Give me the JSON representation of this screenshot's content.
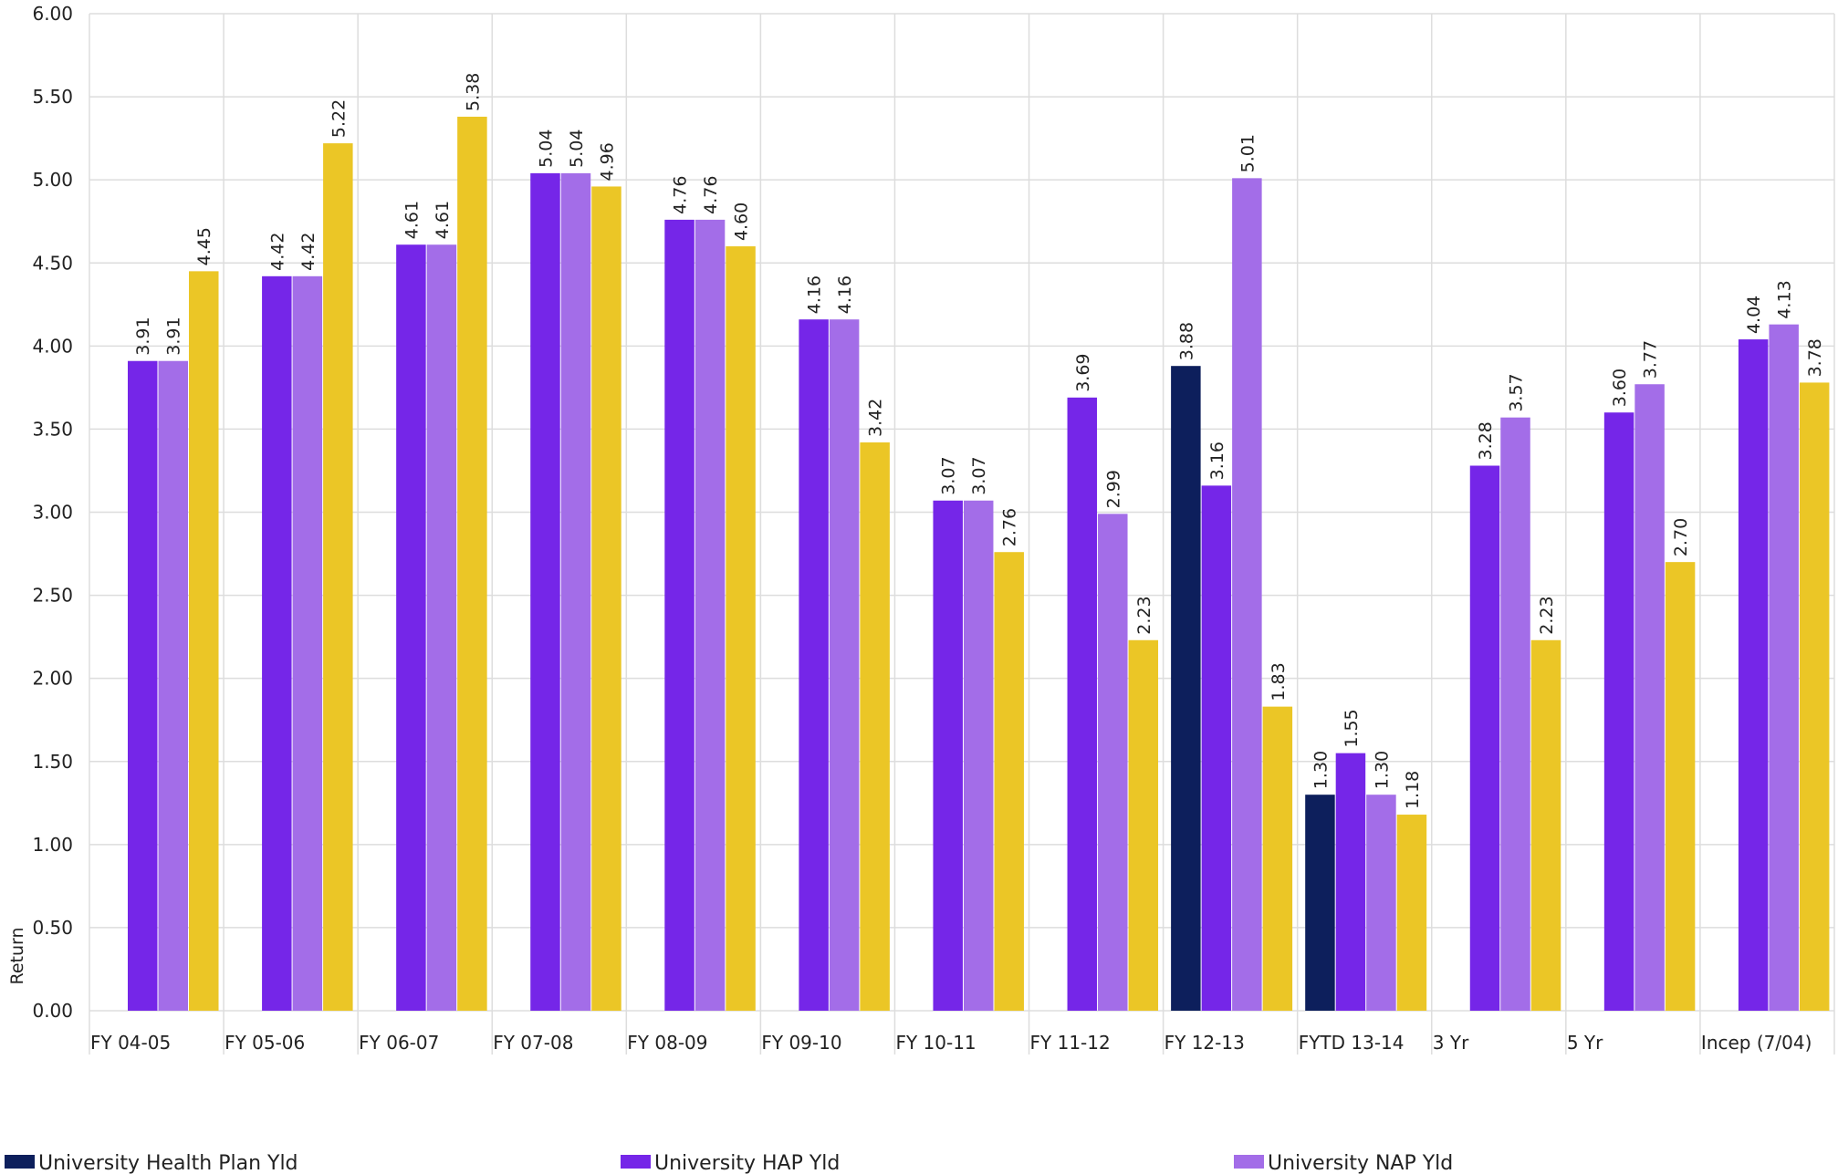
{
  "chart_data": {
    "type": "bar",
    "ylabel": "Return",
    "ylim": [
      0,
      6
    ],
    "yticks": [
      "0.00",
      "0.50",
      "1.00",
      "1.50",
      "2.00",
      "2.50",
      "3.00",
      "3.50",
      "4.00",
      "4.50",
      "5.00",
      "5.50",
      "6.00"
    ],
    "grid": true,
    "legend_position": "bottom",
    "categories": [
      "FY 04-05",
      "FY 05-06",
      "FY 06-07",
      "FY 07-08",
      "FY 08-09",
      "FY 09-10",
      "FY 10-11",
      "FY 11-12",
      "FY 12-13",
      "FYTD 13-14",
      "3 Yr",
      "5 Yr",
      "Incep (7/04)"
    ],
    "series": [
      {
        "name": "University Health Plan Yld",
        "color": "#0d1f5c",
        "values": [
          null,
          null,
          null,
          null,
          null,
          null,
          null,
          null,
          3.88,
          1.3,
          null,
          null,
          null
        ]
      },
      {
        "name": "University HAP Yld",
        "color": "#7526e8",
        "values": [
          3.91,
          4.42,
          4.61,
          5.04,
          4.76,
          4.16,
          3.07,
          3.69,
          3.16,
          1.55,
          3.28,
          3.6,
          4.04
        ]
      },
      {
        "name": "University NAP Yld",
        "color": "#a36de8",
        "values": [
          3.91,
          4.42,
          4.61,
          5.04,
          4.76,
          4.16,
          3.07,
          2.99,
          5.01,
          1.3,
          3.57,
          3.77,
          4.13
        ]
      },
      {
        "name": "",
        "color": "#ebc626",
        "values": [
          4.45,
          5.22,
          5.38,
          4.96,
          4.6,
          3.42,
          2.76,
          2.23,
          1.83,
          1.18,
          2.23,
          2.7,
          3.78
        ]
      }
    ]
  }
}
